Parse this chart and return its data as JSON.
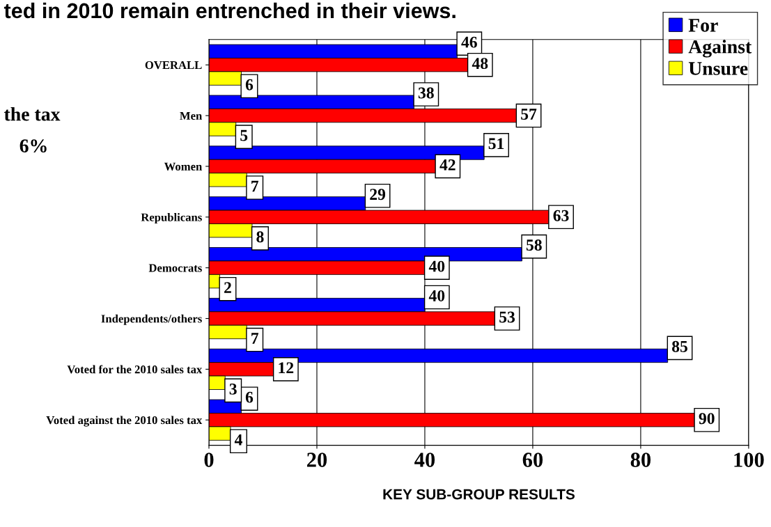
{
  "chart_data": {
    "type": "bar",
    "orientation": "horizontal",
    "title": "ted in 2010 remain entrenched in their views.",
    "xlabel": "KEY SUB-GROUP RESULTS",
    "categories": [
      "OVERALL",
      "Men",
      "Women",
      "Republicans",
      "Democrats",
      "Independents/others",
      "Voted for the 2010 sales tax",
      "Voted against the 2010 sales tax"
    ],
    "series": [
      {
        "name": "For",
        "color": "#0000ff",
        "values": [
          46,
          38,
          51,
          29,
          58,
          40,
          85,
          6
        ]
      },
      {
        "name": "Against",
        "color": "#ff0000",
        "values": [
          48,
          57,
          42,
          63,
          40,
          53,
          12,
          90
        ]
      },
      {
        "name": "Unsure",
        "color": "#ffff00",
        "values": [
          6,
          5,
          7,
          8,
          2,
          7,
          3,
          4
        ]
      }
    ],
    "xlim": [
      0,
      100
    ],
    "xticks": [
      0,
      20,
      40,
      60,
      80,
      100
    ],
    "grid": "x",
    "legend": "top right",
    "data_labels": true,
    "annotations": [
      "the tax",
      "6%"
    ]
  }
}
